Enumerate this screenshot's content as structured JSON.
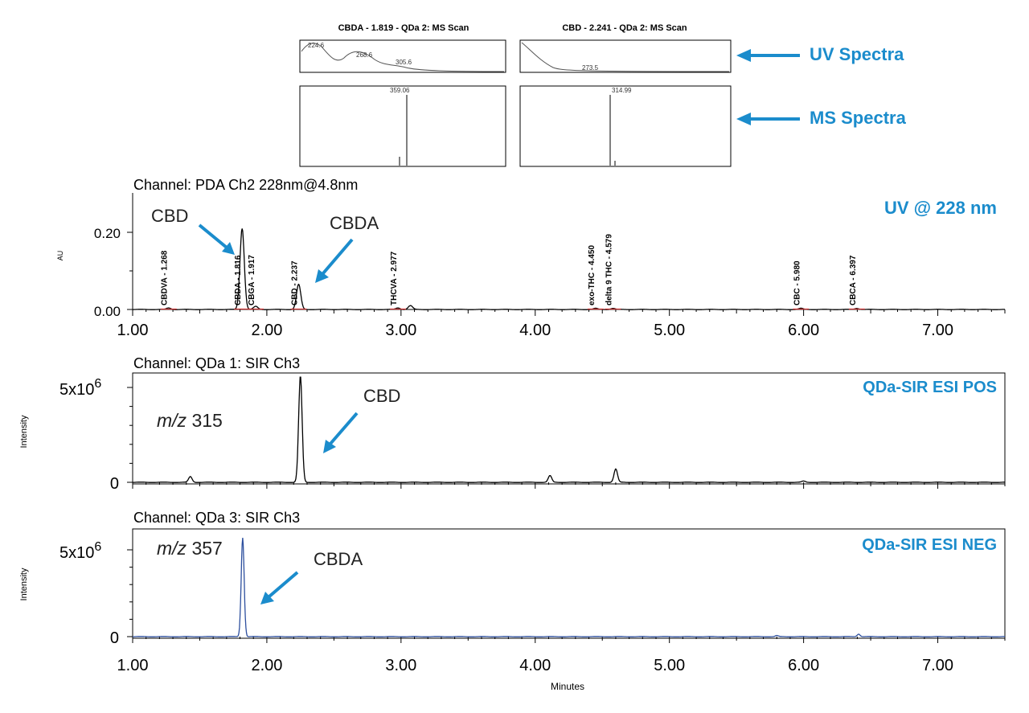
{
  "colors": {
    "accent": "#1b8ccc",
    "trace_black": "#000000",
    "trace_blue": "#2d4f9e",
    "baseline_red": "#cc3333"
  },
  "spectra": {
    "cbda_title": "CBDA - 1.819 - QDa 2: MS Scan",
    "cbd_title": "CBD - 2.241 - QDa 2: MS Scan",
    "cbda_uv_labels": [
      "224.6",
      "268.6",
      "305.6"
    ],
    "cbd_uv_labels": [
      "273.5"
    ],
    "cbda_ms_label": "359.06",
    "cbd_ms_label": "314.99",
    "uv_callout": "UV Spectra",
    "ms_callout": "MS Spectra"
  },
  "chart_data": [
    {
      "type": "line",
      "title": "Channel: PDA Ch2 228nm@4.8nm",
      "tag": "UV @ 228 nm",
      "ylabel": "AU",
      "xlim": [
        1.0,
        7.5
      ],
      "ylim": [
        0.0,
        0.3
      ],
      "yticks": [
        "0.00",
        "0.20"
      ],
      "xticks": [
        "1.00",
        "2.00",
        "3.00",
        "4.00",
        "5.00",
        "6.00",
        "7.00"
      ],
      "peaks": [
        {
          "x": 1.268,
          "label": "CBDVA - 1.268",
          "height": 0.004
        },
        {
          "x": 1.816,
          "label": "CBDA - 1.816",
          "height": 0.21
        },
        {
          "x": 1.917,
          "label": "CBGA - 1.917",
          "height": 0.008
        },
        {
          "x": 2.237,
          "label": "CBD - 2.237",
          "height": 0.065
        },
        {
          "x": 2.977,
          "label": "THCVA - 2.977",
          "height": 0.004
        },
        {
          "x": 3.07,
          "label": "",
          "height": 0.01
        },
        {
          "x": 4.45,
          "label": "exo-THC - 4.450",
          "height": 0.003
        },
        {
          "x": 4.579,
          "label": "delta 9 THC - 4.579",
          "height": 0.003
        },
        {
          "x": 5.98,
          "label": "CBC - 5.980",
          "height": 0.003
        },
        {
          "x": 6.397,
          "label": "CBCA - 6.397",
          "height": 0.003
        }
      ],
      "annotations": [
        "CBD",
        "CBDA"
      ]
    },
    {
      "type": "line",
      "title": "Channel: QDa 1: SIR Ch3",
      "tag": "QDa-SIR ESI POS",
      "mz_prefix": "m/z",
      "mz_value": "315",
      "ylabel": "Intensity",
      "ytick_top": "5x10",
      "ytick_top_exp": "6",
      "ytick_zero": "0",
      "xlim": [
        1.0,
        7.5
      ],
      "ylim": [
        0,
        5500000
      ],
      "peaks": [
        {
          "x": 1.43,
          "height": 300000
        },
        {
          "x": 2.25,
          "height": 5600000
        },
        {
          "x": 4.11,
          "height": 350000
        },
        {
          "x": 4.6,
          "height": 700000
        },
        {
          "x": 6.0,
          "height": 60000
        }
      ],
      "annotations": [
        "CBD"
      ]
    },
    {
      "type": "line",
      "title": "Channel: QDa 3: SIR Ch3",
      "tag": "QDa-SIR ESI NEG",
      "mz_prefix": "m/z",
      "mz_value": "357",
      "ylabel": "Intensity",
      "ytick_top": "5x10",
      "ytick_top_exp": "6",
      "ytick_zero": "0",
      "xlabel": "Minutes",
      "xticks": [
        "1.00",
        "2.00",
        "3.00",
        "4.00",
        "5.00",
        "6.00",
        "7.00"
      ],
      "xlim": [
        1.0,
        7.5
      ],
      "ylim": [
        0,
        5500000
      ],
      "peaks": [
        {
          "x": 1.82,
          "height": 5700000
        },
        {
          "x": 5.8,
          "height": 60000
        },
        {
          "x": 6.41,
          "height": 150000
        }
      ],
      "annotations": [
        "CBDA"
      ]
    }
  ]
}
